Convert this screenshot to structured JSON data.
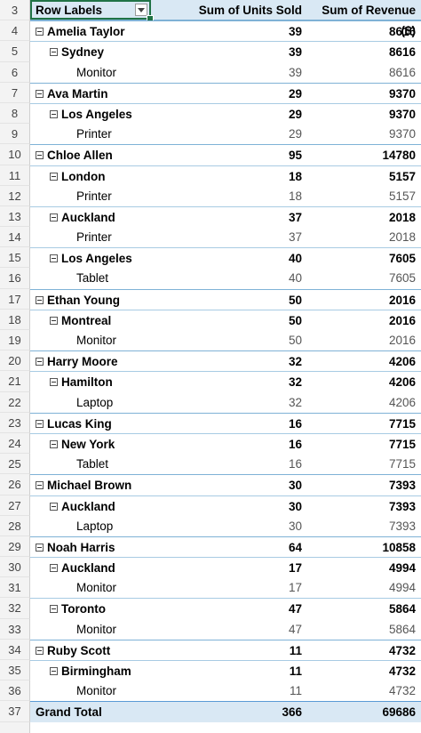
{
  "header": {
    "row_number": "3",
    "row_labels": "Row Labels",
    "units_header": "Sum of Units Sold",
    "revenue_header": "Sum of Revenue ($)"
  },
  "rows": [
    {
      "n": "4",
      "level": 0,
      "label": "Amelia Taylor",
      "units": "39",
      "revenue": "8616"
    },
    {
      "n": "5",
      "level": 1,
      "label": "Sydney",
      "units": "39",
      "revenue": "8616"
    },
    {
      "n": "6",
      "level": 2,
      "label": "Monitor",
      "units": "39",
      "revenue": "8616"
    },
    {
      "n": "7",
      "level": 0,
      "label": "Ava Martin",
      "units": "29",
      "revenue": "9370"
    },
    {
      "n": "8",
      "level": 1,
      "label": "Los Angeles",
      "units": "29",
      "revenue": "9370"
    },
    {
      "n": "9",
      "level": 2,
      "label": "Printer",
      "units": "29",
      "revenue": "9370"
    },
    {
      "n": "10",
      "level": 0,
      "label": "Chloe Allen",
      "units": "95",
      "revenue": "14780"
    },
    {
      "n": "11",
      "level": 1,
      "label": "London",
      "units": "18",
      "revenue": "5157"
    },
    {
      "n": "12",
      "level": 2,
      "label": "Printer",
      "units": "18",
      "revenue": "5157"
    },
    {
      "n": "13",
      "level": 1,
      "label": "Auckland",
      "units": "37",
      "revenue": "2018"
    },
    {
      "n": "14",
      "level": 2,
      "label": "Printer",
      "units": "37",
      "revenue": "2018"
    },
    {
      "n": "15",
      "level": 1,
      "label": "Los Angeles",
      "units": "40",
      "revenue": "7605"
    },
    {
      "n": "16",
      "level": 2,
      "label": "Tablet",
      "units": "40",
      "revenue": "7605"
    },
    {
      "n": "17",
      "level": 0,
      "label": "Ethan Young",
      "units": "50",
      "revenue": "2016"
    },
    {
      "n": "18",
      "level": 1,
      "label": "Montreal",
      "units": "50",
      "revenue": "2016"
    },
    {
      "n": "19",
      "level": 2,
      "label": "Monitor",
      "units": "50",
      "revenue": "2016"
    },
    {
      "n": "20",
      "level": 0,
      "label": "Harry Moore",
      "units": "32",
      "revenue": "4206"
    },
    {
      "n": "21",
      "level": 1,
      "label": "Hamilton",
      "units": "32",
      "revenue": "4206"
    },
    {
      "n": "22",
      "level": 2,
      "label": "Laptop",
      "units": "32",
      "revenue": "4206"
    },
    {
      "n": "23",
      "level": 0,
      "label": "Lucas King",
      "units": "16",
      "revenue": "7715"
    },
    {
      "n": "24",
      "level": 1,
      "label": "New York",
      "units": "16",
      "revenue": "7715"
    },
    {
      "n": "25",
      "level": 2,
      "label": "Tablet",
      "units": "16",
      "revenue": "7715"
    },
    {
      "n": "26",
      "level": 0,
      "label": "Michael Brown",
      "units": "30",
      "revenue": "7393"
    },
    {
      "n": "27",
      "level": 1,
      "label": "Auckland",
      "units": "30",
      "revenue": "7393"
    },
    {
      "n": "28",
      "level": 2,
      "label": "Laptop",
      "units": "30",
      "revenue": "7393"
    },
    {
      "n": "29",
      "level": 0,
      "label": "Noah Harris",
      "units": "64",
      "revenue": "10858"
    },
    {
      "n": "30",
      "level": 1,
      "label": "Auckland",
      "units": "17",
      "revenue": "4994"
    },
    {
      "n": "31",
      "level": 2,
      "label": "Monitor",
      "units": "17",
      "revenue": "4994"
    },
    {
      "n": "32",
      "level": 1,
      "label": "Toronto",
      "units": "47",
      "revenue": "5864"
    },
    {
      "n": "33",
      "level": 2,
      "label": "Monitor",
      "units": "47",
      "revenue": "5864"
    },
    {
      "n": "34",
      "level": 0,
      "label": "Ruby Scott",
      "units": "11",
      "revenue": "4732"
    },
    {
      "n": "35",
      "level": 1,
      "label": "Birmingham",
      "units": "11",
      "revenue": "4732"
    },
    {
      "n": "36",
      "level": 2,
      "label": "Monitor",
      "units": "11",
      "revenue": "4732"
    }
  ],
  "total": {
    "n": "37",
    "label": "Grand Total",
    "units": "366",
    "revenue": "69686"
  },
  "icons": {
    "collapse": "collapse-minus-icon",
    "filter": "dropdown-arrow-icon"
  },
  "colors": {
    "header_fill": "#d9e8f4",
    "border_blue": "#7fb2d6",
    "selection": "#217346"
  }
}
